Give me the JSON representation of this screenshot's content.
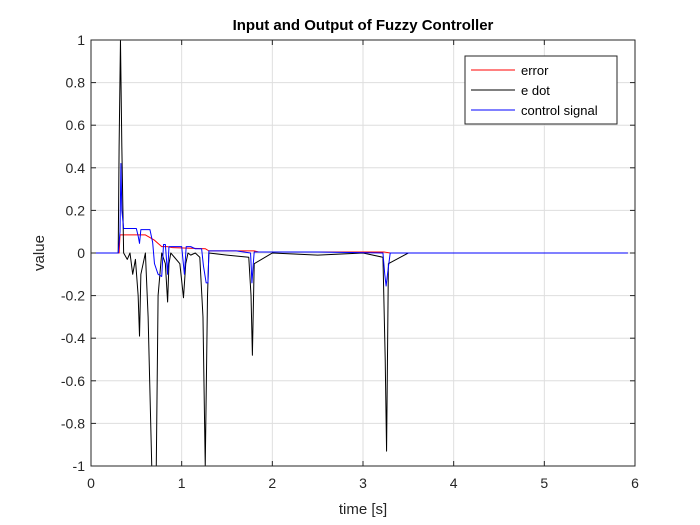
{
  "chart_data": {
    "type": "line",
    "title": "Input and Output of Fuzzy Controller",
    "xlabel": "time [s]",
    "ylabel": "value",
    "xlim": [
      0,
      6
    ],
    "ylim": [
      -1,
      1
    ],
    "xticks": [
      0,
      1,
      2,
      3,
      4,
      5,
      6
    ],
    "xtick_labels": [
      "0",
      "1",
      "2",
      "3",
      "4",
      "5",
      "6"
    ],
    "yticks": [
      1,
      0.8,
      0.6,
      0.4,
      0.2,
      0,
      -0.2,
      -0.4,
      -0.6,
      -0.8,
      -1
    ],
    "ytick_labels": [
      "1",
      "0.8",
      "0.6",
      "0.4",
      "0.2",
      "0",
      "-0.2",
      "-0.4",
      "-0.6",
      "-0.8",
      "-1"
    ],
    "grid": true,
    "legend_position": "top-right",
    "series": [
      {
        "name": "error",
        "color": "#ff0000",
        "x": [
          0,
          0.31,
          0.32,
          0.6,
          0.7,
          0.78,
          0.84,
          0.9,
          1.26,
          1.3,
          1.8,
          1.85,
          3.23,
          3.3,
          5.92
        ],
        "y": [
          0,
          0,
          0.085,
          0.085,
          0.06,
          0.03,
          0.03,
          0.025,
          0.02,
          0.01,
          0.01,
          0.005,
          0.005,
          0.0,
          0.0
        ]
      },
      {
        "name": "e dot",
        "color": "#000000",
        "x": [
          0,
          0.3,
          0.31,
          0.325,
          0.34,
          0.36,
          0.4,
          0.43,
          0.46,
          0.49,
          0.52,
          0.535,
          0.55,
          0.6,
          0.63,
          0.67,
          0.69,
          0.72,
          0.74,
          0.78,
          0.82,
          0.845,
          0.86,
          0.88,
          0.92,
          0.98,
          1.02,
          1.045,
          1.07,
          1.1,
          1.15,
          1.2,
          1.235,
          1.26,
          1.285,
          1.3,
          1.5,
          1.74,
          1.765,
          1.78,
          1.8,
          2.0,
          2.5,
          3.0,
          3.22,
          3.245,
          3.26,
          3.28,
          3.5,
          4.0,
          5.0,
          5.92
        ],
        "y": [
          0,
          0,
          0.5,
          1,
          0.5,
          0,
          -0.03,
          0,
          -0.1,
          -0.03,
          -0.2,
          -0.39,
          -0.1,
          0,
          -0.3,
          -1,
          -1,
          -1,
          -0.2,
          0,
          -0.05,
          -0.23,
          -0.05,
          0,
          -0.02,
          -0.05,
          -0.21,
          -0.05,
          0,
          -0.01,
          0,
          -0.02,
          -0.3,
          -1,
          -0.2,
          0,
          -0.01,
          -0.02,
          -0.2,
          -0.48,
          -0.05,
          0,
          -0.01,
          0,
          -0.02,
          -0.5,
          -0.93,
          -0.05,
          0,
          0,
          0,
          0
        ]
      },
      {
        "name": "control signal",
        "color": "#0000ff",
        "x": [
          0,
          0.3,
          0.32,
          0.33,
          0.34,
          0.36,
          0.5,
          0.52,
          0.535,
          0.55,
          0.65,
          0.68,
          0.7,
          0.74,
          0.78,
          0.8,
          0.82,
          0.845,
          0.86,
          0.9,
          1.0,
          1.03,
          1.05,
          1.1,
          1.15,
          1.22,
          1.24,
          1.27,
          1.29,
          1.3,
          1.6,
          1.76,
          1.775,
          1.79,
          1.8,
          2.5,
          3.22,
          3.24,
          3.255,
          3.27,
          3.3,
          4.0,
          5.0,
          5.92
        ],
        "y": [
          0,
          0,
          0.1,
          0.42,
          0.2,
          0.115,
          0.115,
          0.08,
          0.045,
          0.11,
          0.11,
          0.05,
          -0.05,
          -0.1,
          -0.11,
          0.04,
          0.04,
          -0.1,
          0.03,
          0.03,
          0.03,
          -0.1,
          0.03,
          0.03,
          0.02,
          0.02,
          -0.06,
          -0.14,
          -0.14,
          0.01,
          0.01,
          0.0,
          -0.14,
          -0.05,
          0.005,
          0.005,
          0.0,
          -0.1,
          -0.155,
          -0.1,
          0.0,
          0.0,
          0.0,
          0.0
        ]
      }
    ]
  }
}
